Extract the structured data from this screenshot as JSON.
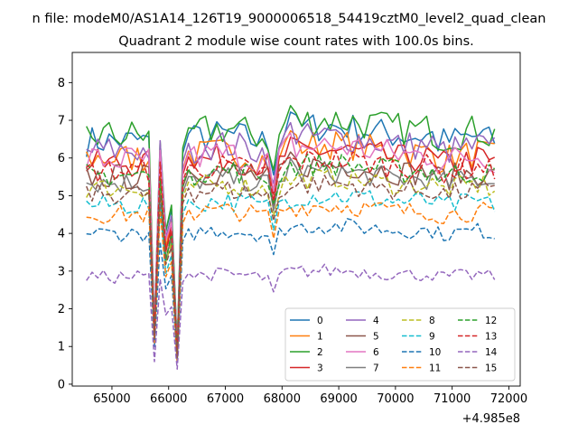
{
  "chart_data": {
    "type": "line",
    "suptitle": "n file: modeM0/AS1A14_126T19_9000006518_54419cztM0_level2_quad_clean",
    "title": "Quadrant 2 module wise count rates with 100.0s bins.",
    "xlabel": "",
    "ylabel": "",
    "x_offset_label": "+4.985e8",
    "xlim": [
      64300,
      72200
    ],
    "ylim": [
      -0.05,
      8.8
    ],
    "x_ticks": [
      65000,
      66000,
      67000,
      68000,
      69000,
      70000,
      71000,
      72000
    ],
    "x_tick_labels": [
      "65000",
      "66000",
      "67000",
      "68000",
      "69000",
      "70000",
      "71000",
      "72000"
    ],
    "y_ticks": [
      0,
      1,
      2,
      3,
      4,
      5,
      6,
      7,
      8
    ],
    "y_tick_labels": [
      "0",
      "1",
      "2",
      "3",
      "4",
      "5",
      "6",
      "7",
      "8"
    ],
    "x_start": 64550,
    "x_step": 100,
    "legend_position": "lower-right",
    "legend_columns": 4,
    "series": [
      {
        "name": "0",
        "color": "#1f77b4",
        "dash": "solid",
        "base": 6.45,
        "amp": 0.42,
        "dip": [
          1.3,
          0.9
        ]
      },
      {
        "name": "1",
        "color": "#ff7f0e",
        "dash": "solid",
        "base": 6.0,
        "amp": 0.4,
        "dip": [
          1.4,
          0.8
        ]
      },
      {
        "name": "2",
        "color": "#2ca02c",
        "dash": "solid",
        "base": 6.6,
        "amp": 0.45,
        "dip": [
          1.5,
          1.0
        ]
      },
      {
        "name": "3",
        "color": "#d62728",
        "dash": "solid",
        "base": 5.85,
        "amp": 0.38,
        "dip": [
          1.4,
          0.8
        ]
      },
      {
        "name": "4",
        "color": "#9467bd",
        "dash": "solid",
        "base": 6.2,
        "amp": 0.4,
        "dip": [
          1.5,
          0.9
        ]
      },
      {
        "name": "5",
        "color": "#8c564b",
        "dash": "solid",
        "base": 5.5,
        "amp": 0.35,
        "dip": [
          1.3,
          0.8
        ]
      },
      {
        "name": "6",
        "color": "#e377c2",
        "dash": "solid",
        "base": 5.95,
        "amp": 0.4,
        "dip": [
          1.4,
          0.9
        ]
      },
      {
        "name": "7",
        "color": "#7f7f7f",
        "dash": "solid",
        "base": 5.35,
        "amp": 0.3,
        "dip": [
          1.2,
          0.7
        ]
      },
      {
        "name": "8",
        "color": "#bcbd22",
        "dash": "dashed",
        "base": 5.2,
        "amp": 0.28,
        "dip": [
          1.2,
          0.7
        ]
      },
      {
        "name": "9",
        "color": "#17becf",
        "dash": "dashed",
        "base": 4.75,
        "amp": 0.28,
        "dip": [
          1.1,
          0.6
        ]
      },
      {
        "name": "10",
        "color": "#1f77b4",
        "dash": "dashed",
        "base": 4.0,
        "amp": 0.22,
        "dip": [
          1.0,
          0.6
        ]
      },
      {
        "name": "11",
        "color": "#ff7f0e",
        "dash": "dashed",
        "base": 4.5,
        "amp": 0.25,
        "dip": [
          1.1,
          0.6
        ]
      },
      {
        "name": "12",
        "color": "#2ca02c",
        "dash": "dashed",
        "base": 5.55,
        "amp": 0.32,
        "dip": [
          1.3,
          0.8
        ]
      },
      {
        "name": "13",
        "color": "#d62728",
        "dash": "dashed",
        "base": 5.65,
        "amp": 0.33,
        "dip": [
          1.3,
          0.8
        ]
      },
      {
        "name": "14",
        "color": "#9467bd",
        "dash": "dashed",
        "base": 2.85,
        "amp": 0.18,
        "dip": [
          0.6,
          0.4
        ]
      },
      {
        "name": "15",
        "color": "#8c564b",
        "dash": "dashed",
        "base": 5.05,
        "amp": 0.28,
        "dip": [
          1.2,
          0.7
        ]
      }
    ]
  }
}
